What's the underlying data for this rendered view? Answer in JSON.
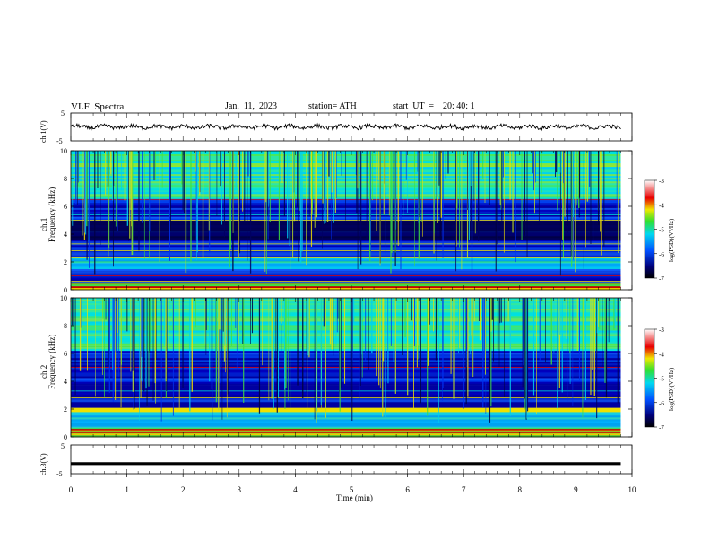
{
  "header": {
    "title": "VLF  Spectra",
    "date": "Jan.  11,  2023",
    "station": "station= ATH",
    "start": "start  UT  =    20: 40: 1"
  },
  "colors": {
    "spectro_low": "#000060",
    "spectro_mid": "#0040ff",
    "spectro_cyan": "#00e0e0",
    "spectro_green": "#40e040",
    "spectro_yellow": "#f0e000",
    "spectro_red": "#e00000",
    "trace": "#000000"
  },
  "chart_data": [
    {
      "type": "line",
      "panel": "ch1-waveform",
      "ylabel": "ch.1(V)",
      "ylim": [
        -5,
        5
      ],
      "yticks": [
        "5",
        "-5"
      ],
      "x_range": [
        0,
        10
      ],
      "series": [
        {
          "approx_level": 0,
          "amplitude": 1
        }
      ]
    },
    {
      "type": "heatmap",
      "panel": "ch1-spectrogram",
      "ylabel_top": "ch.1",
      "ylabel": "Frequency  (kHz)",
      "ylim": [
        0,
        10
      ],
      "yticks": [
        "0",
        "2",
        "4",
        "6",
        "8",
        "10"
      ],
      "x_range": [
        0,
        9.8
      ],
      "colorbar": {
        "label": "log(PSD)(V²/Hz)",
        "range": [
          -7,
          -3
        ],
        "ticks": [
          "-3",
          "-4",
          "-5",
          "-6",
          "-7"
        ]
      },
      "bands_khz": [
        {
          "from": 0,
          "to": 0.5,
          "level": "mixed-red"
        },
        {
          "from": 0.5,
          "to": 1.5,
          "level": "mid"
        },
        {
          "from": 1.5,
          "to": 2.3,
          "level": "cyan"
        },
        {
          "from": 2.3,
          "to": 3.6,
          "level": "mid"
        },
        {
          "from": 3.6,
          "to": 5.0,
          "level": "low"
        },
        {
          "from": 5.0,
          "to": 6.5,
          "level": "mid"
        },
        {
          "from": 6.5,
          "to": 10,
          "level": "high"
        }
      ]
    },
    {
      "type": "heatmap",
      "panel": "ch2-spectrogram",
      "ylabel_top": "ch.2",
      "ylabel": "Frequency  (kHz)",
      "ylim": [
        0,
        10
      ],
      "yticks": [
        "0",
        "2",
        "4",
        "6",
        "8",
        "10"
      ],
      "x_range": [
        0,
        9.8
      ],
      "colorbar": {
        "label": "log(PSD)(V²/Hz)",
        "range": [
          -7,
          -3
        ],
        "ticks": [
          "-3",
          "-4",
          "-5",
          "-6",
          "-7"
        ]
      },
      "bands_khz": [
        {
          "from": 0,
          "to": 0.6,
          "level": "mixed-red"
        },
        {
          "from": 0.6,
          "to": 1.8,
          "level": "cyan"
        },
        {
          "from": 1.8,
          "to": 2.1,
          "level": "yellow"
        },
        {
          "from": 2.1,
          "to": 3.7,
          "level": "mid"
        },
        {
          "from": 3.7,
          "to": 6.2,
          "level": "mid"
        },
        {
          "from": 6.2,
          "to": 10,
          "level": "high"
        }
      ]
    },
    {
      "type": "line",
      "panel": "ch3-waveform",
      "ylabel": "ch.3(V)",
      "ylim": [
        -5,
        5
      ],
      "yticks": [
        "5",
        "-5"
      ],
      "xlabel": "Time  (min)",
      "xticks": [
        "0",
        "1",
        "2",
        "3",
        "4",
        "5",
        "6",
        "7",
        "8",
        "9",
        "10"
      ],
      "x_range": [
        0,
        10
      ],
      "series": [
        {
          "approx_level": -1.5,
          "amplitude": 0.3
        }
      ]
    }
  ]
}
